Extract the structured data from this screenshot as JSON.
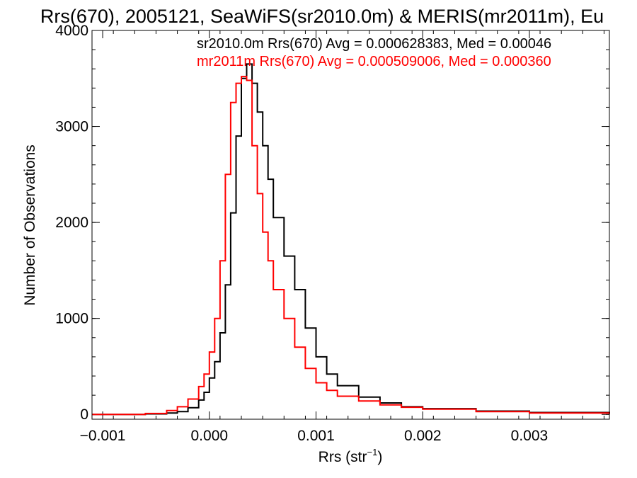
{
  "chart_data": {
    "type": "line",
    "title": "Rrs(670), 2005121, SeaWiFS(sr2010.0m) & MERIS(mr2011m), Eu",
    "xlabel": "Rrs (str",
    "xlabel_sup": "−1",
    "xlabel_close": ")",
    "ylabel": "Number of Observations",
    "xlim": [
      -0.0011,
      0.00375
    ],
    "ylim": [
      -50,
      4000
    ],
    "x_ticks": [
      {
        "value": -0.001,
        "label": "−0.001"
      },
      {
        "value": 0.0,
        "label": "0.000"
      },
      {
        "value": 0.001,
        "label": "0.001"
      },
      {
        "value": 0.002,
        "label": "0.002"
      },
      {
        "value": 0.003,
        "label": "0.003"
      }
    ],
    "y_ticks": [
      {
        "value": 0,
        "label": "0"
      },
      {
        "value": 1000,
        "label": "1000"
      },
      {
        "value": 2000,
        "label": "2000"
      },
      {
        "value": 3000,
        "label": "3000"
      },
      {
        "value": 4000,
        "label": "4000"
      }
    ],
    "legend_placement": "top-right",
    "series": [
      {
        "name": "sr2010.0m",
        "legend": "sr2010.0m Rrs(670) Avg = 0.000628383, Med = 0.00046",
        "color": "#000000",
        "x": [
          -0.0011,
          -0.0006,
          -0.0004,
          -0.0003,
          -0.0002,
          -0.0001,
          -5e-05,
          0.0,
          5e-05,
          0.0001,
          0.00015,
          0.0002,
          0.00025,
          0.0003,
          0.00035,
          0.0004,
          0.00045,
          0.0005,
          0.00055,
          0.0006,
          0.0007,
          0.0008,
          0.0009,
          0.001,
          0.0011,
          0.0012,
          0.0014,
          0.0016,
          0.0018,
          0.002,
          0.0025,
          0.003,
          0.00375
        ],
        "values": [
          0,
          5,
          15,
          30,
          70,
          150,
          230,
          380,
          550,
          850,
          1350,
          2100,
          2900,
          3500,
          3650,
          3450,
          3150,
          2800,
          2450,
          2050,
          1650,
          1300,
          900,
          600,
          420,
          300,
          180,
          120,
          80,
          60,
          35,
          20,
          5
        ]
      },
      {
        "name": "mr2011m",
        "legend": "mr2011m Rrs(670) Avg = 0.000509006, Med = 0.000360",
        "color": "#ff0000",
        "x": [
          -0.0011,
          -0.0006,
          -0.0004,
          -0.0003,
          -0.0002,
          -0.0001,
          -5e-05,
          0.0,
          5e-05,
          0.0001,
          0.00015,
          0.0002,
          0.00025,
          0.0003,
          0.00035,
          0.0004,
          0.00045,
          0.0005,
          0.00055,
          0.0006,
          0.0007,
          0.0008,
          0.0009,
          0.001,
          0.0011,
          0.0012,
          0.0014,
          0.0016,
          0.0018,
          0.002,
          0.0025,
          0.003,
          0.00375
        ],
        "values": [
          0,
          10,
          40,
          80,
          160,
          290,
          420,
          650,
          1000,
          1600,
          2500,
          3250,
          3450,
          3520,
          3480,
          2800,
          2300,
          1900,
          1600,
          1300,
          1000,
          700,
          480,
          330,
          250,
          190,
          140,
          100,
          75,
          55,
          30,
          15,
          5
        ]
      }
    ]
  }
}
